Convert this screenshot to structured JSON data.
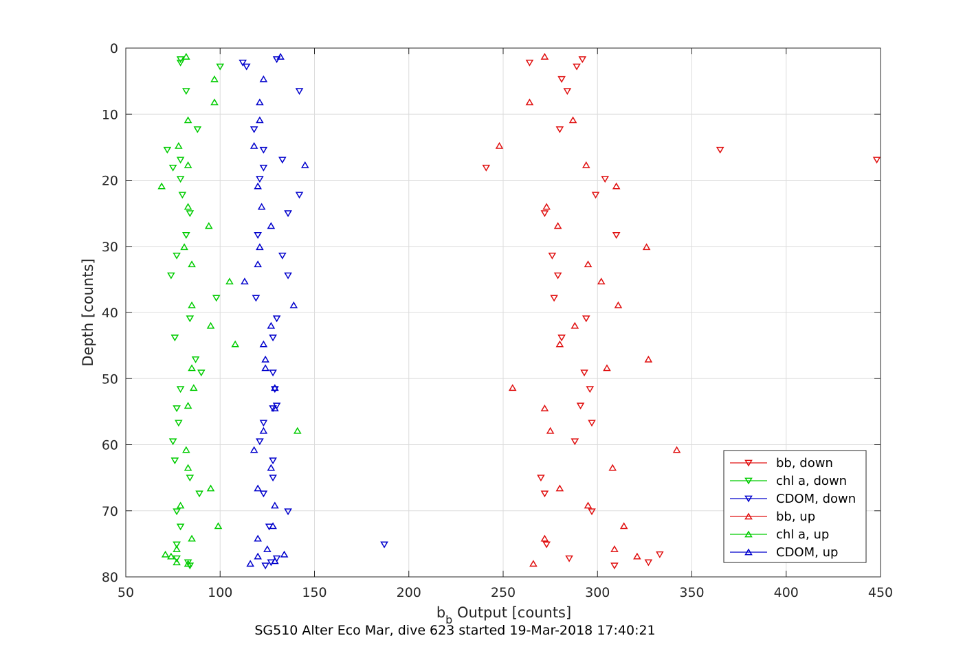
{
  "chart_data": {
    "type": "scatter",
    "xlabel_main": "b",
    "xlabel_sub": "b",
    "xlabel_rest": " Output [counts]",
    "ylabel": "Depth [counts]",
    "caption": "SG510 Alter Eco Mar, dive 623 started 19-Mar-2018 17:40:21",
    "xlim": [
      50,
      450
    ],
    "ylim": [
      0,
      80
    ],
    "y_reversed": true,
    "grid": true,
    "legend_position": "bottom-right inside",
    "x_ticks": [
      "50",
      "100",
      "150",
      "200",
      "250",
      "300",
      "350",
      "400",
      "450"
    ],
    "y_ticks": [
      "0",
      "10",
      "20",
      "30",
      "40",
      "50",
      "60",
      "70",
      "80"
    ],
    "series": [
      {
        "name": "bb, down",
        "color": "#e01010",
        "marker": "triangle-down",
        "points": [
          [
            292,
            1.7
          ],
          [
            264,
            2.2
          ],
          [
            289,
            2.8
          ],
          [
            281,
            4.7
          ],
          [
            284,
            6.5
          ],
          [
            280,
            12.3
          ],
          [
            365,
            15.4
          ],
          [
            448,
            16.9
          ],
          [
            241,
            18.1
          ],
          [
            304,
            19.8
          ],
          [
            299,
            22.2
          ],
          [
            272,
            25
          ],
          [
            310,
            28.3
          ],
          [
            276,
            31.4
          ],
          [
            279,
            34.4
          ],
          [
            277,
            37.8
          ],
          [
            294,
            40.9
          ],
          [
            281,
            43.8
          ],
          [
            293,
            49.1
          ],
          [
            296,
            51.6
          ],
          [
            291,
            54.1
          ],
          [
            297,
            56.7
          ],
          [
            288,
            59.5
          ],
          [
            270,
            65
          ],
          [
            272,
            67.4
          ],
          [
            297,
            70.1
          ],
          [
            273,
            75.1
          ],
          [
            333,
            76.6
          ],
          [
            285,
            77.2
          ],
          [
            327,
            77.8
          ],
          [
            309,
            78.3
          ]
        ]
      },
      {
        "name": "chl a, down",
        "color": "#00cc00",
        "marker": "triangle-down",
        "points": [
          [
            79,
            2.2
          ],
          [
            79,
            1.7
          ],
          [
            100,
            2.8
          ],
          [
            82,
            6.5
          ],
          [
            88,
            12.3
          ],
          [
            72,
            15.4
          ],
          [
            79,
            16.9
          ],
          [
            75,
            18.1
          ],
          [
            79,
            19.8
          ],
          [
            80,
            22.2
          ],
          [
            84,
            25
          ],
          [
            82,
            28.3
          ],
          [
            77,
            31.4
          ],
          [
            74,
            34.4
          ],
          [
            98,
            37.8
          ],
          [
            84,
            40.9
          ],
          [
            76,
            43.8
          ],
          [
            87,
            47.1
          ],
          [
            90,
            49.1
          ],
          [
            79,
            51.6
          ],
          [
            77,
            54.5
          ],
          [
            78,
            56.7
          ],
          [
            75,
            59.5
          ],
          [
            76,
            62.4
          ],
          [
            84,
            65
          ],
          [
            89,
            67.4
          ],
          [
            77,
            70.1
          ],
          [
            79,
            72.4
          ],
          [
            77,
            75.1
          ],
          [
            77,
            77.2
          ],
          [
            83,
            77.8
          ],
          [
            84,
            78.3
          ]
        ]
      },
      {
        "name": "CDOM, down",
        "color": "#0000cc",
        "marker": "triangle-down",
        "points": [
          [
            112,
            2.2
          ],
          [
            114,
            2.8
          ],
          [
            130,
            1.7
          ],
          [
            142,
            6.5
          ],
          [
            118,
            12.3
          ],
          [
            123,
            15.4
          ],
          [
            133,
            16.9
          ],
          [
            123,
            18.1
          ],
          [
            121,
            19.8
          ],
          [
            142,
            22.2
          ],
          [
            136,
            25
          ],
          [
            120,
            28.3
          ],
          [
            133,
            31.4
          ],
          [
            136,
            34.4
          ],
          [
            119,
            37.8
          ],
          [
            130,
            40.9
          ],
          [
            128,
            43.8
          ],
          [
            128,
            49.1
          ],
          [
            129,
            51.6
          ],
          [
            130,
            54.1
          ],
          [
            128,
            54.5
          ],
          [
            123,
            56.7
          ],
          [
            121,
            59.5
          ],
          [
            128,
            62.4
          ],
          [
            128,
            65
          ],
          [
            123,
            67.4
          ],
          [
            136,
            70.1
          ],
          [
            126,
            72.4
          ],
          [
            187,
            75.1
          ],
          [
            130,
            77.2
          ],
          [
            127,
            77.8
          ],
          [
            124,
            78.3
          ]
        ]
      },
      {
        "name": "bb, up",
        "color": "#e01010",
        "marker": "triangle-up",
        "points": [
          [
            272,
            1.3
          ],
          [
            287,
            10.9
          ],
          [
            248,
            14.8
          ],
          [
            264,
            8.2
          ],
          [
            294,
            17.7
          ],
          [
            310,
            20.9
          ],
          [
            273,
            24
          ],
          [
            279,
            26.9
          ],
          [
            326,
            30.1
          ],
          [
            295,
            32.7
          ],
          [
            302,
            35.3
          ],
          [
            311,
            38.9
          ],
          [
            288,
            42
          ],
          [
            280,
            44.8
          ],
          [
            327,
            47.1
          ],
          [
            305,
            48.4
          ],
          [
            255,
            51.4
          ],
          [
            272,
            54.5
          ],
          [
            275,
            57.9
          ],
          [
            342,
            60.8
          ],
          [
            308,
            63.5
          ],
          [
            280,
            66.6
          ],
          [
            295,
            69.2
          ],
          [
            314,
            72.3
          ],
          [
            272,
            74.2
          ],
          [
            309,
            75.8
          ],
          [
            321,
            76.9
          ],
          [
            266,
            78
          ]
        ]
      },
      {
        "name": "chl a, up",
        "color": "#00cc00",
        "marker": "triangle-up",
        "points": [
          [
            82,
            1.3
          ],
          [
            97,
            4.7
          ],
          [
            97,
            8.2
          ],
          [
            83,
            10.9
          ],
          [
            78,
            14.8
          ],
          [
            83,
            17.7
          ],
          [
            69,
            20.9
          ],
          [
            83,
            24
          ],
          [
            94,
            26.9
          ],
          [
            81,
            30.1
          ],
          [
            85,
            32.7
          ],
          [
            105,
            35.3
          ],
          [
            85,
            38.9
          ],
          [
            95,
            42
          ],
          [
            108,
            44.8
          ],
          [
            85,
            48.4
          ],
          [
            86,
            51.4
          ],
          [
            83,
            54.1
          ],
          [
            141,
            57.9
          ],
          [
            82,
            60.8
          ],
          [
            83,
            63.5
          ],
          [
            95,
            66.6
          ],
          [
            79,
            69.2
          ],
          [
            99,
            72.3
          ],
          [
            85,
            74.2
          ],
          [
            77,
            75.8
          ],
          [
            74,
            76.9
          ],
          [
            71,
            76.6
          ],
          [
            77,
            77.8
          ],
          [
            83,
            78
          ]
        ]
      },
      {
        "name": "CDOM, up",
        "color": "#0000cc",
        "marker": "triangle-up",
        "points": [
          [
            132,
            1.3
          ],
          [
            123,
            4.7
          ],
          [
            121,
            8.2
          ],
          [
            121,
            10.9
          ],
          [
            118,
            14.8
          ],
          [
            145,
            17.7
          ],
          [
            120,
            20.9
          ],
          [
            122,
            24
          ],
          [
            127,
            26.9
          ],
          [
            121,
            30.1
          ],
          [
            120,
            32.7
          ],
          [
            113,
            35.3
          ],
          [
            139,
            38.9
          ],
          [
            127,
            42
          ],
          [
            123,
            44.8
          ],
          [
            124,
            47.1
          ],
          [
            124,
            48.4
          ],
          [
            129,
            51.4
          ],
          [
            129,
            54.5
          ],
          [
            123,
            57.9
          ],
          [
            118,
            60.8
          ],
          [
            127,
            63.5
          ],
          [
            120,
            66.6
          ],
          [
            129,
            69.2
          ],
          [
            128,
            72.3
          ],
          [
            120,
            74.2
          ],
          [
            125,
            75.8
          ],
          [
            120,
            76.9
          ],
          [
            134,
            76.6
          ],
          [
            129,
            77.6
          ],
          [
            116,
            78
          ]
        ]
      }
    ]
  }
}
